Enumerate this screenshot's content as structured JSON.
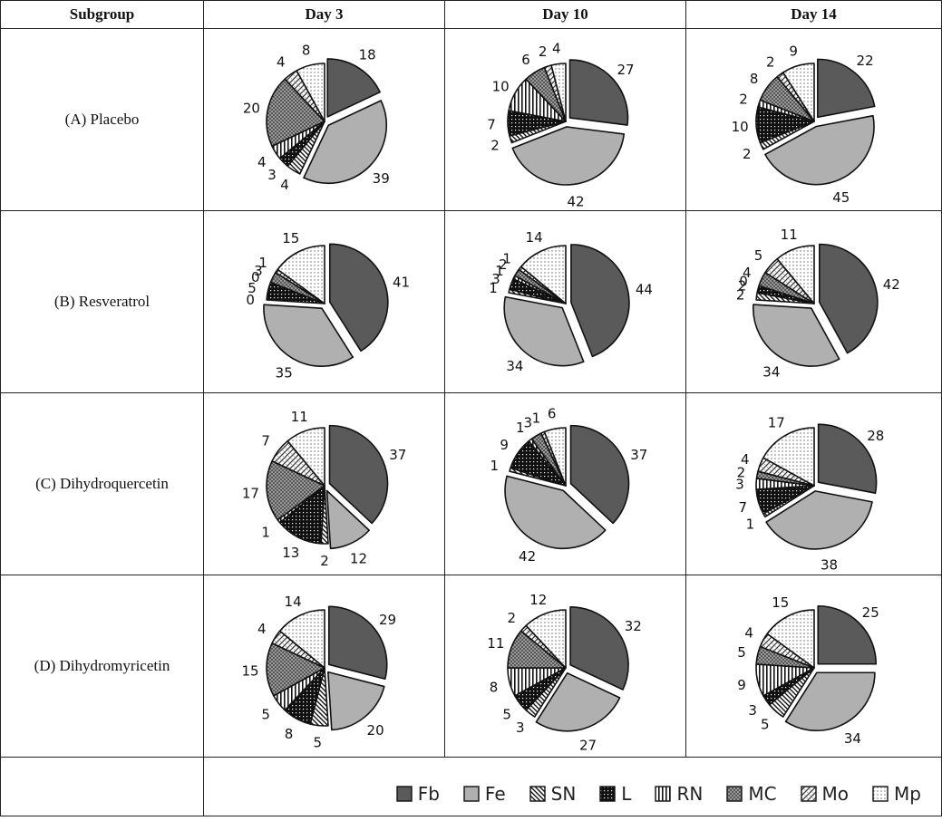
{
  "header": {
    "subgroup": "Subgroup",
    "days": [
      "Day 3",
      "Day 10",
      "Day 14"
    ]
  },
  "rows": [
    {
      "label": "(A) Placebo"
    },
    {
      "label": "(B) Resveratrol"
    },
    {
      "label": "(C) Dihydroquercetin"
    },
    {
      "label": "(D) Dihydromyricetin"
    }
  ],
  "legend": [
    {
      "key": "Fb",
      "color": "#5a5a5a",
      "pattern": "solid-dark"
    },
    {
      "key": "Fe",
      "color": "#b0b0b0",
      "pattern": "solid-light"
    },
    {
      "key": "SN",
      "color": "#222222",
      "pattern": "diagonal"
    },
    {
      "key": "L",
      "color": "#111111",
      "pattern": "black-dots"
    },
    {
      "key": "RN",
      "color": "#222222",
      "pattern": "vertical-lines"
    },
    {
      "key": "MC",
      "color": "#8a8a8a",
      "pattern": "checker"
    },
    {
      "key": "Mo",
      "color": "#444444",
      "pattern": "diagonal-cross"
    },
    {
      "key": "Mp",
      "color": "#999999",
      "pattern": "light-dots"
    }
  ],
  "chart_data": [
    {
      "type": "pie",
      "row": "(A) Placebo",
      "column": "Day 3",
      "categories": [
        "Fb",
        "Fe",
        "SN",
        "L",
        "RN",
        "MC",
        "Mo",
        "Mp"
      ],
      "values": [
        18,
        39,
        4,
        3,
        4,
        20,
        4,
        8
      ]
    },
    {
      "type": "pie",
      "row": "(A) Placebo",
      "column": "Day 10",
      "categories": [
        "Fb",
        "Fe",
        "SN",
        "L",
        "RN",
        "MC",
        "Mo",
        "Mp"
      ],
      "values": [
        27,
        42,
        2,
        7,
        10,
        6,
        2,
        4
      ]
    },
    {
      "type": "pie",
      "row": "(A) Placebo",
      "column": "Day 14",
      "categories": [
        "Fb",
        "Fe",
        "SN",
        "L",
        "RN",
        "MC",
        "Mo",
        "Mp"
      ],
      "values": [
        22,
        45,
        2,
        10,
        2,
        8,
        2,
        9
      ]
    },
    {
      "type": "pie",
      "row": "(B) Resveratrol",
      "column": "Day 3",
      "categories": [
        "Fb",
        "Fe",
        "SN",
        "L",
        "RN",
        "MC",
        "Mo",
        "Mp"
      ],
      "values": [
        41,
        35,
        0,
        5,
        0,
        3,
        1,
        15
      ]
    },
    {
      "type": "pie",
      "row": "(B) Resveratrol",
      "column": "Day 10",
      "categories": [
        "Fb",
        "Fe",
        "SN",
        "L",
        "RN",
        "MC",
        "Mo",
        "Mp"
      ],
      "values": [
        44,
        34,
        1,
        3,
        1,
        2,
        1,
        14
      ]
    },
    {
      "type": "pie",
      "row": "(B) Resveratrol",
      "column": "Day 14",
      "categories": [
        "Fb",
        "Fe",
        "SN",
        "L",
        "RN",
        "MC",
        "Mo",
        "Mp"
      ],
      "values": [
        42,
        34,
        2,
        2,
        0,
        4,
        5,
        11
      ]
    },
    {
      "type": "pie",
      "row": "(C) Dihydroquercetin",
      "column": "Day 3",
      "categories": [
        "Fb",
        "Fe",
        "SN",
        "L",
        "RN",
        "MC",
        "Mo",
        "Mp"
      ],
      "values": [
        37,
        12,
        2,
        13,
        1,
        17,
        7,
        11
      ]
    },
    {
      "type": "pie",
      "row": "(C) Dihydroquercetin",
      "column": "Day 10",
      "categories": [
        "Fb",
        "Fe",
        "SN",
        "L",
        "RN",
        "MC",
        "Mo",
        "Mp"
      ],
      "values": [
        37,
        42,
        1,
        9,
        1,
        3,
        1,
        6
      ]
    },
    {
      "type": "pie",
      "row": "(C) Dihydroquercetin",
      "column": "Day 14",
      "categories": [
        "Fb",
        "Fe",
        "SN",
        "L",
        "RN",
        "MC",
        "Mo",
        "Mp"
      ],
      "values": [
        28,
        38,
        1,
        7,
        3,
        2,
        4,
        17
      ]
    },
    {
      "type": "pie",
      "row": "(D) Dihydromyricetin",
      "column": "Day 3",
      "categories": [
        "Fb",
        "Fe",
        "SN",
        "L",
        "RN",
        "MC",
        "Mo",
        "Mp"
      ],
      "values": [
        29,
        20,
        5,
        8,
        5,
        15,
        4,
        14
      ]
    },
    {
      "type": "pie",
      "row": "(D) Dihydromyricetin",
      "column": "Day 10",
      "categories": [
        "Fb",
        "Fe",
        "SN",
        "L",
        "RN",
        "MC",
        "Mo",
        "Mp"
      ],
      "values": [
        32,
        27,
        3,
        5,
        8,
        11,
        2,
        12
      ]
    },
    {
      "type": "pie",
      "row": "(D) Dihydromyricetin",
      "column": "Day 14",
      "categories": [
        "Fb",
        "Fe",
        "SN",
        "L",
        "RN",
        "MC",
        "Mo",
        "Mp"
      ],
      "values": [
        25,
        34,
        5,
        3,
        9,
        5,
        4,
        15
      ]
    }
  ]
}
